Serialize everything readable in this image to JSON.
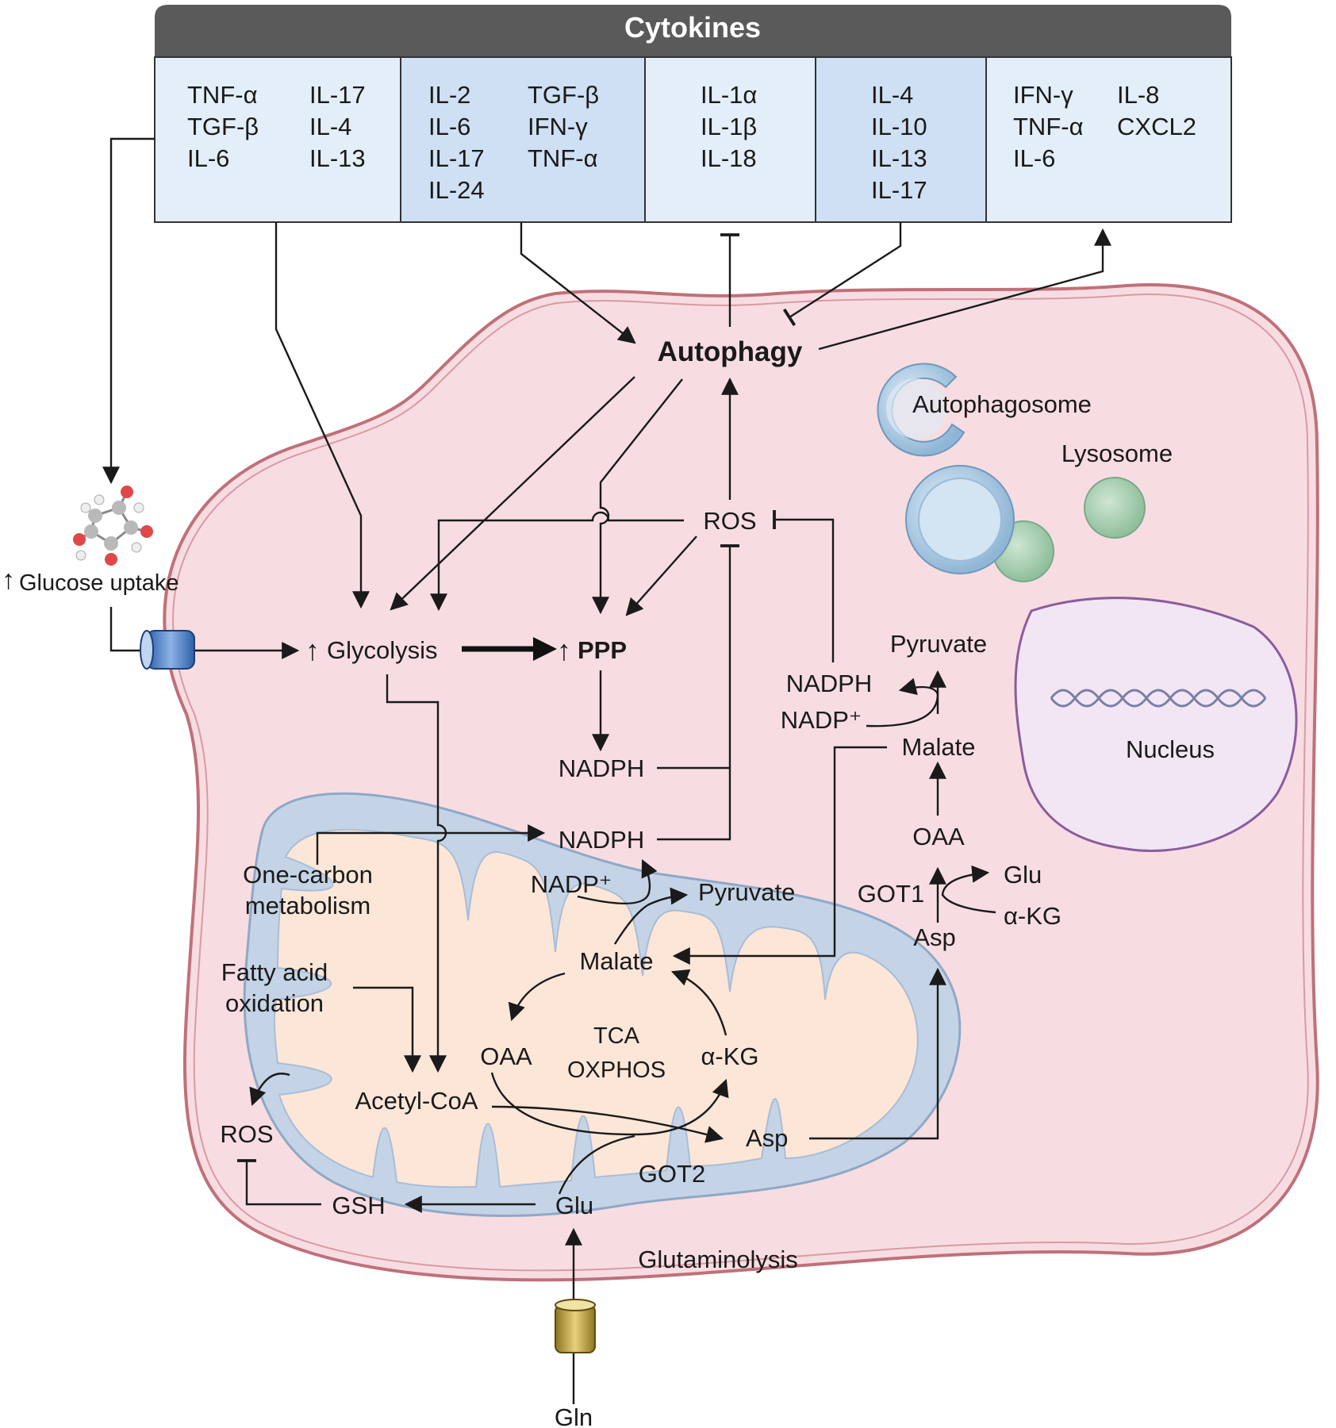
{
  "cytokines": {
    "header": "Cytokines",
    "columns": [
      {
        "col1": [
          "TNF-α",
          "TGF-β",
          "IL-6"
        ],
        "col2": [
          "IL-17",
          "IL-4",
          "IL-13"
        ]
      },
      {
        "col1": [
          "IL-2",
          "IL-6",
          "IL-17",
          "IL-24"
        ],
        "col2": [
          "TGF-β",
          "IFN-γ",
          "TNF-α"
        ]
      },
      {
        "col1": [
          "IL-1α",
          "IL-1β",
          "IL-18"
        ],
        "col2": []
      },
      {
        "col1": [
          "IL-4",
          "IL-10",
          "IL-13",
          "IL-17"
        ],
        "col2": []
      },
      {
        "col1": [
          "IFN-γ",
          "TNF-α",
          "IL-6"
        ],
        "col2": [
          "IL-8",
          "CXCL2"
        ]
      }
    ]
  },
  "cell": {
    "autophagy": "Autophagy",
    "autophagosome": "Autophagosome",
    "lysosome": "Lysosome",
    "nucleus": "Nucleus",
    "glucose_uptake": "Glucose uptake",
    "glycolysis": "Glycolysis",
    "ppp": "PPP",
    "ros_top": "ROS",
    "nadph_ppp": "NADPH",
    "nadph_mid": "NADPH",
    "nadp_plus_mito": "NADP⁺",
    "pyruvate_mito": "Pyruvate",
    "one_carbon": [
      "One-carbon",
      "metabolism"
    ],
    "fatty_acid": [
      "Fatty acid",
      "oxidation"
    ],
    "ros_bottom": "ROS",
    "gsh": "GSH",
    "glutaminolysis": "Glutaminolysis",
    "gln": "Gln"
  },
  "mitochondrion": {
    "malate": "Malate",
    "oaa": "OAA",
    "tca": "TCA",
    "oxphos": "OXPHOS",
    "akg": "α-KG",
    "acetyl_coa": "Acetyl-CoA",
    "asp": "Asp",
    "got2": "GOT2",
    "glu": "Glu"
  },
  "cytosol_malate_pathway": {
    "pyruvate": "Pyruvate",
    "nadph": "NADPH",
    "nadp_plus": "NADP⁺",
    "malate": "Malate",
    "oaa": "OAA",
    "got1": "GOT1",
    "glu": "Glu",
    "akg": "α-KG",
    "asp": "Asp"
  },
  "colors": {
    "header_bg": "#5a5a5a",
    "cell_fill": "#f7dde1",
    "cell_border": "#c0707a",
    "mito_outer": "#c4d4e6",
    "mito_inner": "#fbe6d8",
    "nucleus_fill": "#f3e6f4",
    "nucleus_border": "#8a5c9e",
    "lysosome": "#a9d0b2",
    "autophagosome": "#8fb6d6"
  }
}
